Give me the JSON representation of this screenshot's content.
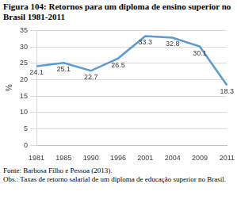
{
  "chart_data": {
    "type": "line",
    "title": "Figura 104: Retornos para um diploma de ensino superior no Brasil 1981-2011",
    "y_label": "%",
    "categories": [
      "1981",
      "1985",
      "1990",
      "1996",
      "2001",
      "2004",
      "2009",
      "2011"
    ],
    "values": [
      24.1,
      25.1,
      22.7,
      26.5,
      33.3,
      32.8,
      30.1,
      18.3
    ],
    "color": "#5b9bd5",
    "ylim": [
      0,
      35
    ],
    "yticks": [
      0,
      5,
      10,
      15,
      20,
      25,
      30,
      35
    ],
    "grid": true,
    "data_labels": true,
    "annotations": [
      "Fonte: Barbosa Filho e Pessoa (2013).",
      "Obs.: Taxas de retorno salarial de um diploma de educação superior no Brasil."
    ]
  }
}
